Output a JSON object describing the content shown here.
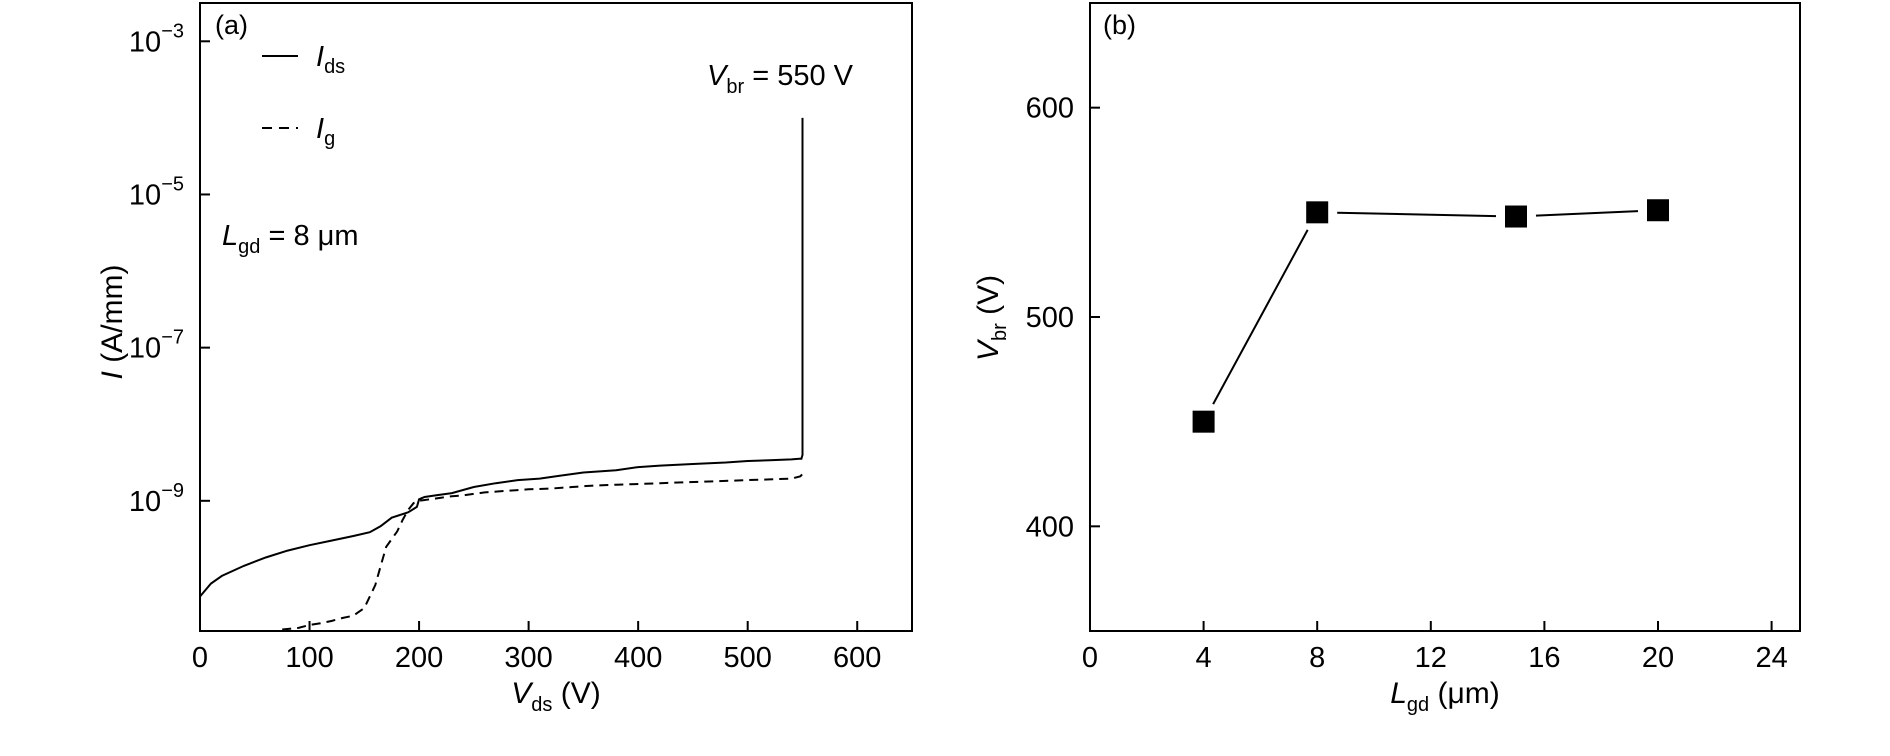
{
  "chart_data": [
    {
      "panel_label": "(a)",
      "type": "line",
      "y_scale": "log",
      "xlim": [
        0,
        650
      ],
      "ylim_log10": [
        -10.7,
        -2.5
      ],
      "x_ticks": [
        0,
        100,
        200,
        300,
        400,
        500,
        600
      ],
      "x_tick_labels": [
        "0",
        "100",
        "200",
        "300",
        "400",
        "500",
        "600"
      ],
      "y_ticks_log10": [
        -3,
        -5,
        -7,
        -9
      ],
      "y_tick_labels": [
        {
          "base": "10",
          "exp": "−3"
        },
        {
          "base": "10",
          "exp": "−5"
        },
        {
          "base": "10",
          "exp": "−7"
        },
        {
          "base": "10",
          "exp": "−9"
        }
      ],
      "xlabel": {
        "main": "V",
        "sub": "ds",
        "rest": " (V)"
      },
      "ylabel": {
        "italic": "I",
        "rest": " (A/mm)"
      },
      "legend": [
        {
          "main": "I",
          "sub": "ds",
          "style": "solid"
        },
        {
          "main": "I",
          "sub": "g",
          "style": "dashed"
        }
      ],
      "annotations": {
        "lgd": {
          "main": "L",
          "sub": "gd",
          "rest": " = 8 μm"
        },
        "vbr": {
          "main": "V",
          "sub": "br",
          "rest": " = 550 V",
          "color": "#e8000b"
        }
      },
      "series": [
        {
          "name": "Ids",
          "style": "solid",
          "x": [
            0,
            10,
            20,
            40,
            60,
            80,
            100,
            120,
            140,
            155,
            165,
            175,
            190,
            198,
            200,
            205,
            215,
            230,
            250,
            270,
            290,
            310,
            330,
            350,
            380,
            400,
            420,
            450,
            480,
            500,
            520,
            540,
            547,
            549,
            550,
            550,
            550,
            550
          ],
          "y_log10": [
            -10.25,
            -10.08,
            -9.98,
            -9.85,
            -9.74,
            -9.65,
            -9.58,
            -9.52,
            -9.46,
            -9.41,
            -9.33,
            -9.22,
            -9.15,
            -9.08,
            -8.98,
            -8.95,
            -8.93,
            -8.9,
            -8.82,
            -8.77,
            -8.73,
            -8.71,
            -8.67,
            -8.63,
            -8.6,
            -8.56,
            -8.54,
            -8.52,
            -8.5,
            -8.48,
            -8.47,
            -8.46,
            -8.45,
            -8.45,
            -8.4,
            -7.0,
            -5.5,
            -4.0
          ]
        },
        {
          "name": "Ig",
          "style": "dashed",
          "x": [
            75,
            90,
            100,
            110,
            120,
            130,
            140,
            150,
            160,
            165,
            170,
            175,
            180,
            185,
            190,
            195,
            200,
            210,
            220,
            230,
            240,
            250,
            260,
            270,
            280,
            290,
            300,
            320,
            340,
            360,
            380,
            400,
            420,
            440,
            460,
            480,
            500,
            520,
            540,
            548,
            550
          ],
          "y_log10": [
            -10.68,
            -10.66,
            -10.62,
            -10.6,
            -10.57,
            -10.53,
            -10.5,
            -10.4,
            -10.1,
            -9.85,
            -9.6,
            -9.5,
            -9.4,
            -9.25,
            -9.12,
            -9.03,
            -9.0,
            -8.98,
            -8.96,
            -8.94,
            -8.93,
            -8.91,
            -8.89,
            -8.88,
            -8.87,
            -8.86,
            -8.85,
            -8.84,
            -8.82,
            -8.8,
            -8.79,
            -8.78,
            -8.77,
            -8.76,
            -8.75,
            -8.74,
            -8.73,
            -8.72,
            -8.71,
            -8.68,
            -8.65
          ]
        }
      ]
    },
    {
      "panel_label": "(b)",
      "type": "line",
      "marker": "square",
      "xlim": [
        0,
        25
      ],
      "ylim": [
        350,
        650
      ],
      "x_ticks": [
        0,
        4,
        8,
        12,
        16,
        20,
        24
      ],
      "x_tick_labels": [
        "0",
        "4",
        "8",
        "12",
        "16",
        "20",
        "24"
      ],
      "y_ticks": [
        400,
        500,
        600
      ],
      "y_tick_labels": [
        "400",
        "500",
        "600"
      ],
      "xlabel": {
        "main": "L",
        "sub": "gd",
        "rest": " (μm)"
      },
      "ylabel": {
        "main": "V",
        "sub": "br",
        "rest": " (V)"
      },
      "x": [
        4,
        8,
        15,
        20
      ],
      "y": [
        450,
        550,
        548,
        551
      ]
    }
  ]
}
